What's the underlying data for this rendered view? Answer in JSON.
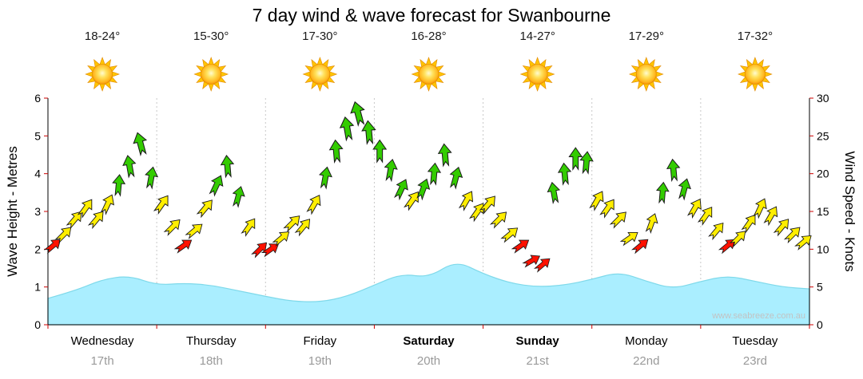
{
  "title": "7 day wind & wave forecast for Swanbourne",
  "watermark": "www.seabreeze.com.au",
  "header": {
    "days": [
      {
        "name": "Wednesday",
        "date": "17th",
        "temp": "18-24°",
        "bold": false
      },
      {
        "name": "Thursday",
        "date": "18th",
        "temp": "15-30°",
        "bold": false
      },
      {
        "name": "Friday",
        "date": "19th",
        "temp": "17-30°",
        "bold": false
      },
      {
        "name": "Saturday",
        "date": "20th",
        "temp": "16-28°",
        "bold": true
      },
      {
        "name": "Sunday",
        "date": "21st",
        "temp": "14-27°",
        "bold": true
      },
      {
        "name": "Monday",
        "date": "22nd",
        "temp": "17-29°",
        "bold": false
      },
      {
        "name": "Tuesday",
        "date": "23rd",
        "temp": "17-32°",
        "bold": false
      }
    ]
  },
  "chart_data": {
    "type": "area",
    "title": "7 day wind & wave forecast for Swanbourne",
    "x_axis": {
      "categories": [
        "Wednesday",
        "Thursday",
        "Friday",
        "Saturday",
        "Sunday",
        "Monday",
        "Tuesday"
      ],
      "dates": [
        "17th",
        "18th",
        "19th",
        "20th",
        "21st",
        "22nd",
        "23rd"
      ]
    },
    "y_left": {
      "label": "Wave Height - Metres",
      "min": 0,
      "max": 6,
      "tick_step": 1
    },
    "y_right": {
      "label": "Wind Speed - Knots",
      "min": 0,
      "max": 30,
      "tick_step": 5
    },
    "thresholds": {
      "green_min_knots": 17,
      "yellow_min_knots": 11
    },
    "colors": {
      "wave_fill": "#aaeeff",
      "wave_stroke": "#7fd9ea",
      "arrow_green": "#33cc00",
      "arrow_yellow": "#ffee00",
      "arrow_red": "#ff1100",
      "tick": "#cc0000",
      "axis": "#000000",
      "separator": "#c8c8c8",
      "sun_ray": "#ffc400",
      "sun_edge": "#e08700"
    },
    "grid": {
      "vertical_day_separators": true,
      "horizontal": false
    },
    "legend": "none",
    "series": [
      {
        "name": "Wave Height",
        "type": "area",
        "axis": "left",
        "unit": "m",
        "x_days": [
          0,
          0.25,
          0.5,
          0.75,
          1,
          1.25,
          1.5,
          1.75,
          2,
          2.25,
          2.5,
          2.75,
          3,
          3.25,
          3.5,
          3.75,
          4,
          4.25,
          4.5,
          4.75,
          5,
          5.25,
          5.5,
          5.75,
          6,
          6.25,
          6.5,
          6.75,
          7
        ],
        "values": [
          0.7,
          0.9,
          1.2,
          1.3,
          1.05,
          1.1,
          1.05,
          0.9,
          0.75,
          0.62,
          0.6,
          0.75,
          1.05,
          1.35,
          1.25,
          1.7,
          1.35,
          1.1,
          1.0,
          1.05,
          1.2,
          1.4,
          1.15,
          0.95,
          1.15,
          1.3,
          1.15,
          1.0,
          0.95
        ]
      },
      {
        "name": "Wind Speed",
        "type": "wind-arrows",
        "axis": "right",
        "unit": "knots",
        "days": [
          {
            "day": "Wednesday",
            "knots": [
              10.5,
              12,
              14,
              15.5,
              14,
              16,
              18.5,
              21,
              24,
              19.5
            ],
            "dir_deg": [
              50,
              45,
              40,
              35,
              40,
              25,
              5,
              -10,
              -15,
              10
            ]
          },
          {
            "day": "Thursday",
            "knots": [
              16,
              13,
              10.5,
              12.5,
              15.5,
              18.5,
              21,
              17,
              13,
              10
            ],
            "dir_deg": [
              35,
              45,
              55,
              50,
              40,
              25,
              -5,
              15,
              35,
              45
            ]
          },
          {
            "day": "Friday",
            "knots": [
              10,
              11.5,
              13.5,
              13,
              16,
              19.5,
              23,
              26,
              28,
              25.5
            ],
            "dir_deg": [
              55,
              50,
              45,
              40,
              30,
              10,
              -5,
              -10,
              -15,
              -5
            ]
          },
          {
            "day": "Saturday",
            "knots": [
              23,
              20.5,
              18,
              16.5,
              18,
              20,
              22.5,
              19.5,
              16.5,
              15
            ],
            "dir_deg": [
              0,
              10,
              25,
              35,
              20,
              5,
              -5,
              15,
              30,
              35
            ]
          },
          {
            "day": "Sunday",
            "knots": [
              16,
              14,
              12,
              10.5,
              8.5,
              8,
              17.5,
              20,
              22,
              21.5
            ],
            "dir_deg": [
              40,
              45,
              50,
              55,
              60,
              50,
              -10,
              -5,
              0,
              5
            ]
          },
          {
            "day": "Monday",
            "knots": [
              16.5,
              15.5,
              14,
              11.5,
              10.5,
              13.5,
              17.5,
              20.5,
              18,
              15.5
            ],
            "dir_deg": [
              30,
              35,
              45,
              55,
              50,
              20,
              5,
              -5,
              15,
              30
            ]
          },
          {
            "day": "Tuesday",
            "knots": [
              14.5,
              12.5,
              10.5,
              11.5,
              13.5,
              15.5,
              14.5,
              13,
              12,
              11
            ],
            "dir_deg": [
              35,
              40,
              50,
              45,
              35,
              25,
              30,
              40,
              45,
              50
            ]
          }
        ]
      }
    ]
  }
}
